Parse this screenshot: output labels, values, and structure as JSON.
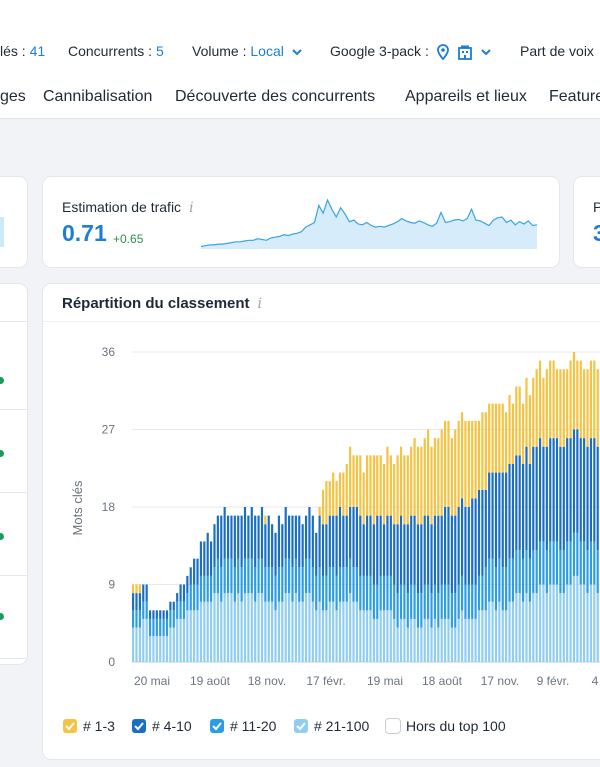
{
  "filters": {
    "keywords_label": "lés : ",
    "keywords_value": "41",
    "competitors_label": "Concurrents : ",
    "competitors_value": "5",
    "volume_label": "Volume : ",
    "volume_value": "Local",
    "google3pack_label": "Google 3-pack : ",
    "share_label": "Part de voix"
  },
  "tabs": [
    "ges",
    "Cannibalisation",
    "Découverte des concurrents",
    "Appareils et lieux",
    "Feature"
  ],
  "traffic_card": {
    "title": "Estimation de trafic",
    "info": "i",
    "value": "0.71",
    "delta": "+0.65",
    "sparkline": [
      0.02,
      0.03,
      0.04,
      0.04,
      0.05,
      0.05,
      0.06,
      0.07,
      0.08,
      0.08,
      0.09,
      0.1,
      0.1,
      0.12,
      0.11,
      0.1,
      0.13,
      0.14,
      0.15,
      0.17,
      0.16,
      0.18,
      0.19,
      0.21,
      0.27,
      0.3,
      0.33,
      0.55,
      0.45,
      0.62,
      0.5,
      0.4,
      0.52,
      0.44,
      0.34,
      0.36,
      0.31,
      0.3,
      0.33,
      0.29,
      0.27,
      0.28,
      0.27,
      0.29,
      0.31,
      0.34,
      0.38,
      0.35,
      0.33,
      0.32,
      0.35,
      0.33,
      0.3,
      0.28,
      0.32,
      0.46,
      0.33,
      0.34,
      0.36,
      0.37,
      0.35,
      0.38,
      0.5,
      0.36,
      0.35,
      0.32,
      0.29,
      0.36,
      0.39,
      0.4,
      0.33,
      0.36,
      0.3,
      0.34,
      0.31,
      0.35,
      0.29,
      0.3
    ]
  },
  "right_card_partial": {
    "title_initial": "P",
    "value_initial": "3"
  },
  "chart_card": {
    "title": "Répartition du classement",
    "info": "i"
  },
  "legend": [
    {
      "label": "# 1-3",
      "color": "#f5c242",
      "checked": true
    },
    {
      "label": "# 4-10",
      "color": "#1a6fc4",
      "checked": true
    },
    {
      "label": "# 11-20",
      "color": "#2b9de6",
      "checked": true
    },
    {
      "label": "# 21-100",
      "color": "#8fcdf3",
      "checked": true
    },
    {
      "label": "Hors du top 100",
      "color": "#ffffff",
      "checked": false
    }
  ],
  "chart_data": {
    "type": "bar",
    "stacked": true,
    "title": "Répartition du classement",
    "ylabel": "Mots clés",
    "xlabel": "",
    "ylim": [
      0,
      36
    ],
    "yticks": [
      0,
      9,
      18,
      27,
      36
    ],
    "xtick_labels": [
      "20 mai",
      "19 août",
      "18 nov.",
      "17 févr.",
      "19 mai",
      "18 août",
      "17 nov.",
      "9 févr.",
      "4"
    ],
    "grid": true,
    "series": [
      {
        "name": "# 21-100",
        "color": "#8fcdf3",
        "values": [
          4,
          4,
          4,
          5,
          5,
          3,
          3,
          3,
          3,
          3,
          3,
          4,
          4,
          5,
          5,
          5,
          6,
          6,
          6,
          6,
          7,
          7,
          7,
          7,
          8,
          8,
          7,
          8,
          8,
          8,
          7,
          8,
          7,
          8,
          8,
          8,
          7,
          8,
          8,
          7,
          7,
          7,
          6,
          7,
          7,
          8,
          8,
          7,
          8,
          7,
          7,
          8,
          8,
          7,
          6,
          7,
          6,
          6,
          7,
          7,
          6,
          7,
          7,
          7,
          8,
          7,
          7,
          6,
          6,
          6,
          6,
          5,
          5,
          6,
          6,
          6,
          6,
          5,
          4,
          5,
          5,
          4,
          5,
          5,
          4,
          4,
          5,
          5,
          4,
          5,
          4,
          5,
          5,
          5,
          4,
          4,
          5,
          6,
          5,
          5,
          5,
          5,
          6,
          6,
          6,
          7,
          7,
          6,
          7,
          6,
          6,
          7,
          7,
          8,
          8,
          7,
          8,
          7,
          8,
          8,
          9,
          9,
          8,
          9,
          9,
          9,
          8,
          8,
          9,
          9,
          10,
          10,
          9,
          9,
          8,
          9,
          9,
          8
        ]
      },
      {
        "name": "# 11-20",
        "color": "#2b9de6",
        "values": [
          2,
          2,
          2,
          2,
          2,
          2,
          2,
          2,
          2,
          2,
          2,
          2,
          2,
          2,
          2,
          2,
          2,
          3,
          3,
          3,
          3,
          3,
          3,
          3,
          3,
          4,
          4,
          4,
          4,
          4,
          4,
          4,
          4,
          4,
          4,
          4,
          4,
          4,
          4,
          4,
          4,
          4,
          4,
          4,
          4,
          4,
          4,
          4,
          4,
          4,
          4,
          4,
          4,
          4,
          4,
          4,
          4,
          4,
          4,
          4,
          4,
          4,
          4,
          4,
          4,
          4,
          4,
          4,
          4,
          4,
          4,
          4,
          4,
          4,
          4,
          4,
          4,
          4,
          4,
          4,
          4,
          4,
          4,
          4,
          4,
          4,
          4,
          4,
          4,
          4,
          4,
          4,
          4,
          4,
          4,
          4,
          4,
          4,
          4,
          4,
          4,
          4,
          4,
          4,
          5,
          5,
          5,
          5,
          5,
          5,
          5,
          5,
          5,
          5,
          5,
          5,
          5,
          5,
          5,
          5,
          5,
          5,
          5,
          5,
          5,
          5,
          5,
          5,
          5,
          5,
          5,
          5,
          5,
          5,
          5,
          5,
          5,
          5
        ]
      },
      {
        "name": "# 4-10",
        "color": "#1a6fc4",
        "values": [
          2,
          2,
          2,
          2,
          2,
          1,
          1,
          1,
          1,
          1,
          1,
          1,
          1,
          1,
          2,
          2,
          2,
          2,
          3,
          3,
          4,
          4,
          5,
          4,
          5,
          5,
          6,
          6,
          5,
          5,
          6,
          5,
          6,
          6,
          5,
          6,
          6,
          5,
          6,
          5,
          6,
          5,
          5,
          6,
          5,
          6,
          5,
          6,
          5,
          6,
          5,
          5,
          6,
          6,
          5,
          6,
          6,
          6,
          6,
          6,
          7,
          7,
          6,
          6,
          6,
          7,
          7,
          7,
          6,
          7,
          7,
          7,
          8,
          7,
          6,
          7,
          7,
          7,
          8,
          8,
          7,
          8,
          8,
          8,
          8,
          8,
          8,
          8,
          8,
          8,
          9,
          8,
          9,
          9,
          9,
          9,
          9,
          9,
          9,
          9,
          10,
          10,
          10,
          10,
          9,
          10,
          10,
          11,
          10,
          11,
          11,
          11,
          11,
          11,
          11,
          11,
          12,
          11,
          12,
          12,
          12,
          11,
          12,
          12,
          12,
          12,
          12,
          12,
          12,
          12,
          12,
          12,
          12,
          12,
          12,
          12,
          12,
          12
        ]
      },
      {
        "name": "# 1-3",
        "color": "#f5c242",
        "values": [
          1,
          1,
          1,
          0,
          0,
          0,
          0,
          0,
          0,
          0,
          0,
          0,
          0,
          0,
          0,
          0,
          0,
          0,
          0,
          0,
          0,
          0,
          0,
          0,
          0,
          0,
          0,
          0,
          0,
          0,
          0,
          0,
          0,
          0,
          0,
          0,
          0,
          0,
          0,
          1,
          0,
          0,
          0,
          0,
          0,
          0,
          0,
          0,
          0,
          0,
          0,
          0,
          0,
          0,
          0,
          1,
          4,
          5,
          4,
          5,
          4,
          4,
          5,
          6,
          7,
          6,
          6,
          7,
          6,
          7,
          7,
          8,
          7,
          7,
          7,
          8,
          7,
          7,
          8,
          8,
          8,
          8,
          8,
          9,
          9,
          9,
          9,
          10,
          9,
          9,
          9,
          10,
          10,
          10,
          9,
          10,
          10,
          10,
          10,
          10,
          9,
          9,
          8,
          9,
          9,
          8,
          8,
          8,
          8,
          8,
          7,
          8,
          7,
          8,
          8,
          7,
          8,
          8,
          8,
          9,
          9,
          8,
          9,
          9,
          9,
          8,
          9,
          9,
          8,
          9,
          9,
          8,
          9,
          8,
          9,
          9,
          9,
          9
        ]
      }
    ]
  }
}
